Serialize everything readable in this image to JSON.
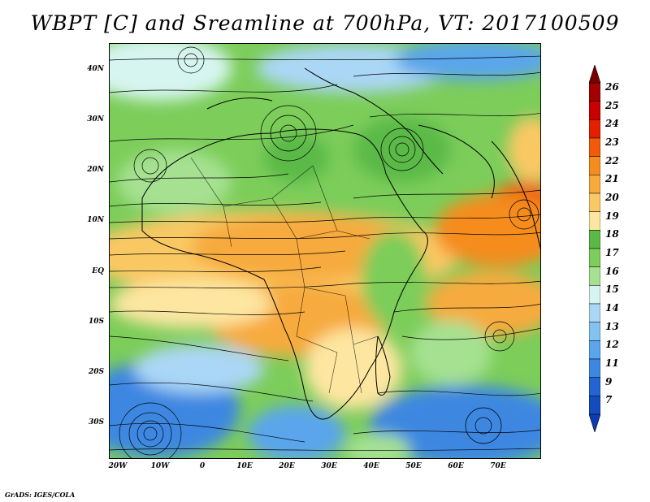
{
  "title": "WBPT [C] and Sreamline at 700hPa, VT: 2017100509",
  "footer": "GrADS: IGES/COLA",
  "lat_labels": [
    "40N",
    "30N",
    "20N",
    "10N",
    "EQ",
    "10S",
    "20S",
    "30S"
  ],
  "lon_labels": [
    "20W",
    "10W",
    "0",
    "10E",
    "20E",
    "30E",
    "40E",
    "50E",
    "60E",
    "70E"
  ],
  "colorbar": {
    "labels": [
      "26",
      "25",
      "24",
      "23",
      "22",
      "21",
      "20",
      "19",
      "18",
      "17",
      "16",
      "15",
      "14",
      "13",
      "12",
      "11",
      "9",
      "7"
    ],
    "colors": [
      "#a50000",
      "#c80000",
      "#e61e00",
      "#f05a0a",
      "#f58c1e",
      "#f7aa3c",
      "#fac864",
      "#fde6a0",
      "#5ab946",
      "#7ccd5a",
      "#a5e191",
      "#d7f5f0",
      "#aad7f5",
      "#82c3f0",
      "#5aa5eb",
      "#3c87e1",
      "#2364d2",
      "#144bbe"
    ]
  }
}
